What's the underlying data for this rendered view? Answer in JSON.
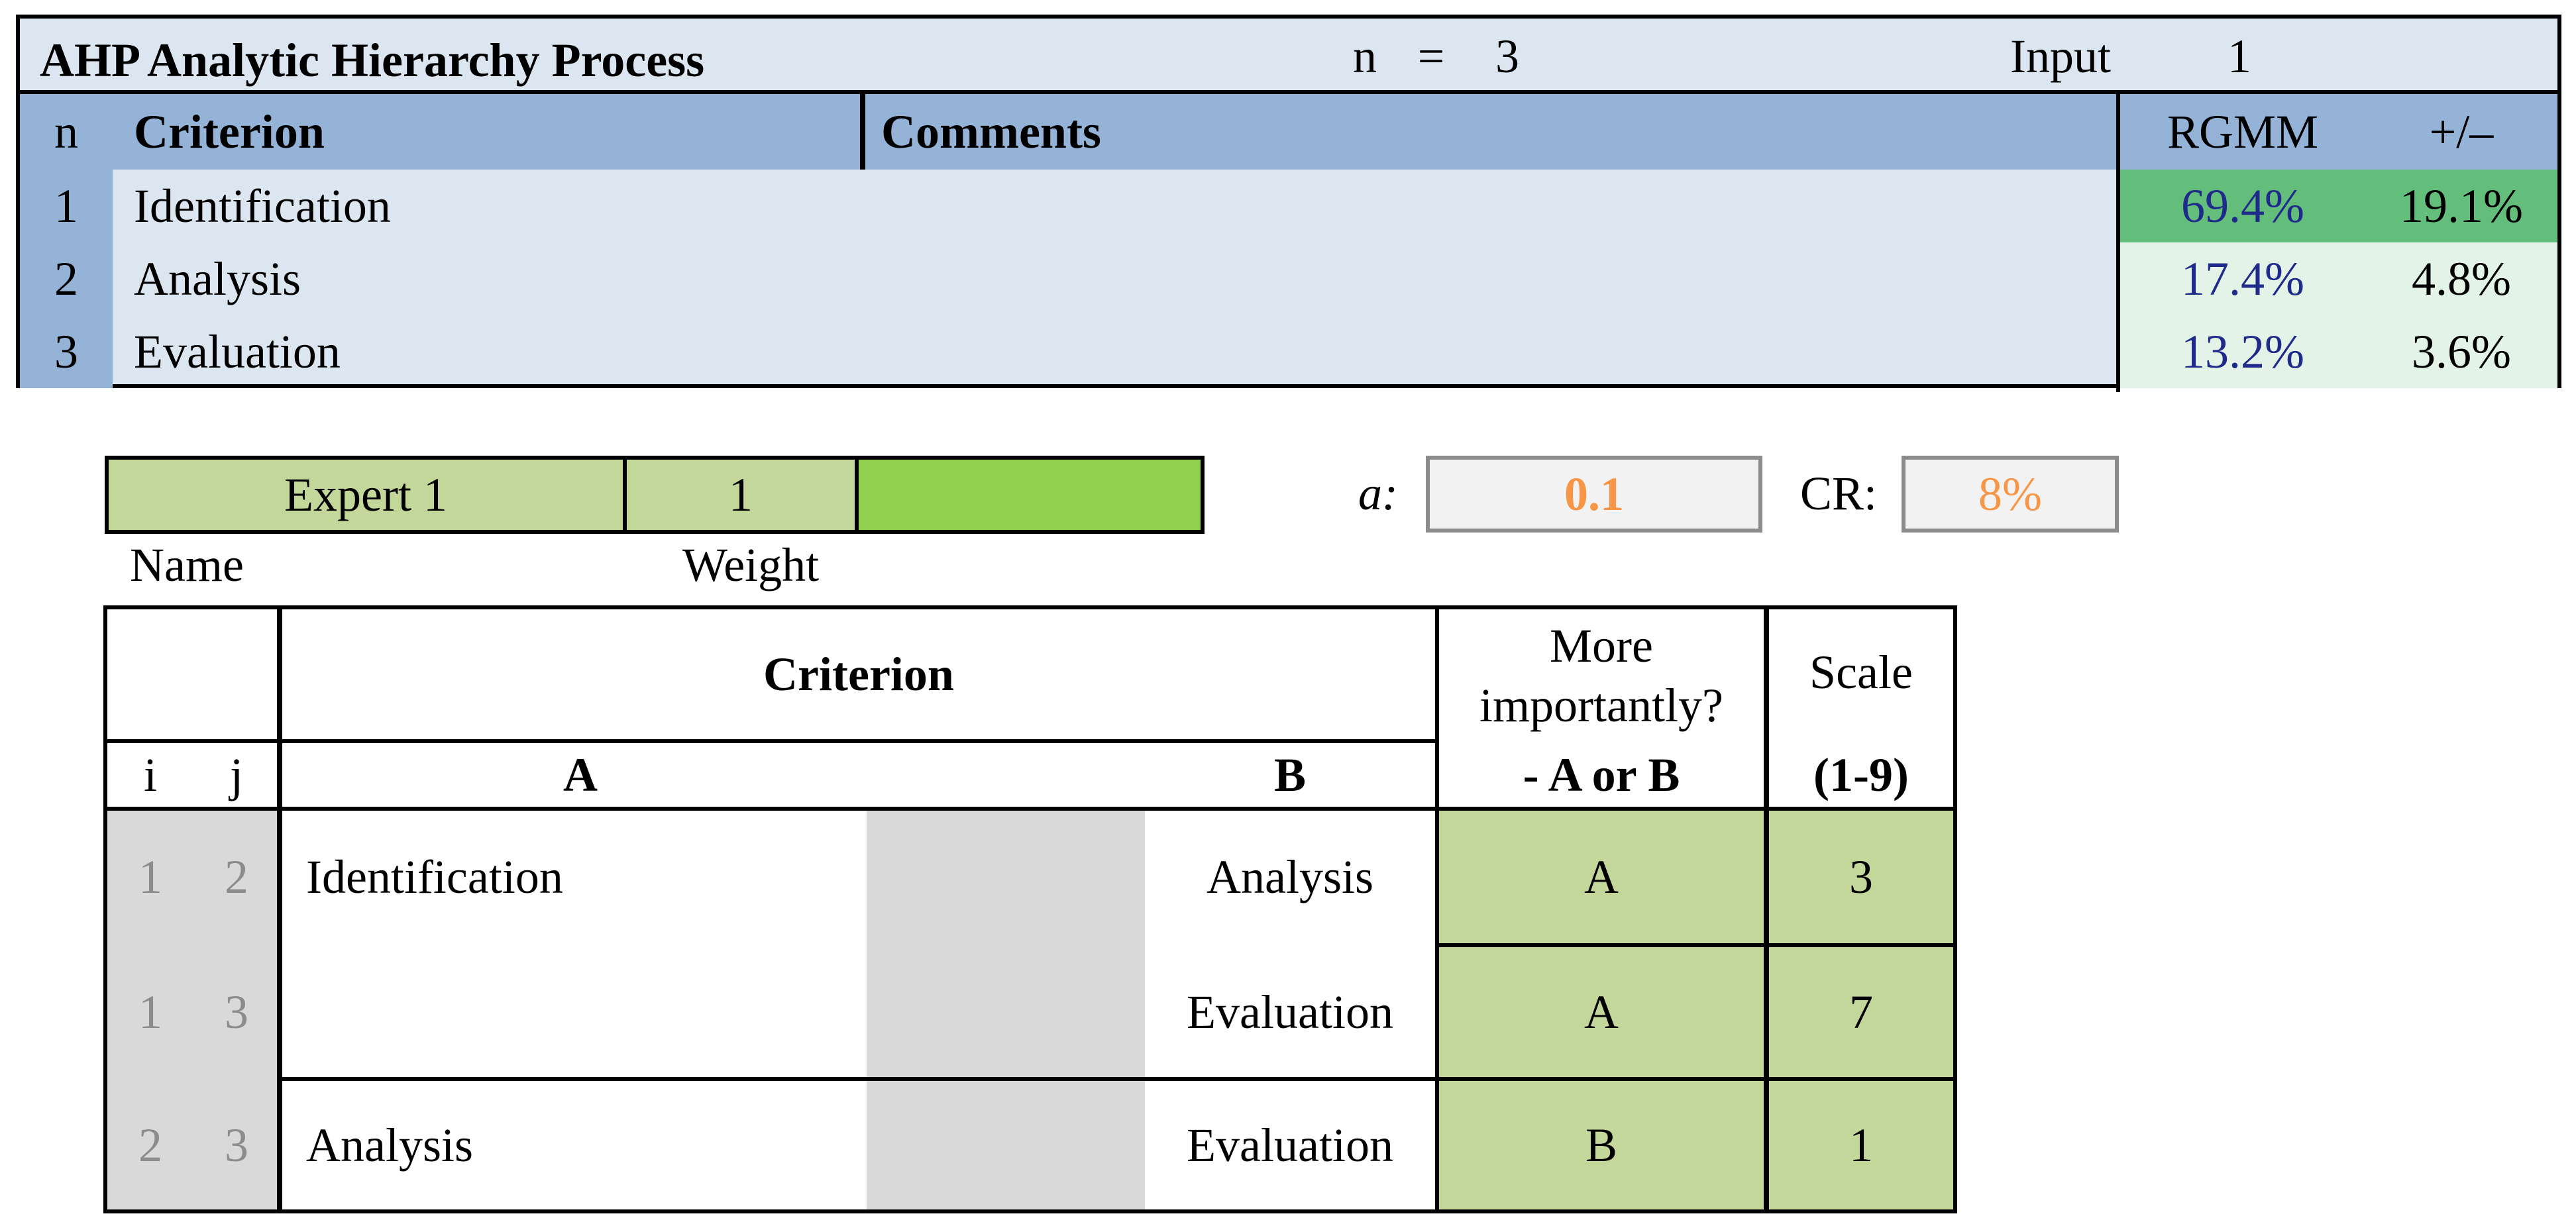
{
  "summary": {
    "title": "AHP Analytic Hierarchy Process",
    "n_label": "n",
    "n_equals": "=",
    "n_value": "3",
    "input_label": "Input",
    "input_value": "1",
    "headers": {
      "n": "n",
      "criterion": "Criterion",
      "comments": "Comments",
      "rgmm": "RGMM",
      "plusminus": "+/–"
    },
    "rows": [
      {
        "n": "1",
        "criterion": "Identification",
        "comment": "",
        "rgmm": "69.4%",
        "plusminus": "19.1%"
      },
      {
        "n": "2",
        "criterion": "Analysis",
        "comment": "",
        "rgmm": "17.4%",
        "plusminus": "4.8%"
      },
      {
        "n": "3",
        "criterion": "Evaluation",
        "comment": "",
        "rgmm": "13.2%",
        "plusminus": "3.6%"
      }
    ]
  },
  "expert": {
    "name_value": "Expert 1",
    "weight_value": "1",
    "name_label": "Name",
    "weight_label": "Weight",
    "alpha_label": "a:",
    "alpha_value": "0.1",
    "cr_label": "CR:",
    "cr_value": "8%"
  },
  "comparison": {
    "header_criterion": "Criterion",
    "header_more_line1": "More",
    "header_more_line2": "importantly?",
    "header_scale": "Scale",
    "header_i": "i",
    "header_j": "j",
    "header_a": "A",
    "header_b": "B",
    "header_aorb": "- A or B",
    "header_range": "(1-9)",
    "rows": [
      {
        "i": "1",
        "j": "2",
        "a": "Identification",
        "b": "Analysis",
        "choice": "A",
        "scale": "3"
      },
      {
        "i": "1",
        "j": "3",
        "a": "",
        "b": "Evaluation",
        "choice": "A",
        "scale": "7"
      },
      {
        "i": "2",
        "j": "3",
        "a": "Analysis",
        "b": "Evaluation",
        "choice": "B",
        "scale": "1"
      }
    ]
  },
  "colors": {
    "summary_light": "#dce6f1",
    "summary_header": "#95b3d7",
    "rgmm_top": "#63be7b",
    "rgmm_other": "#e3f3e7",
    "expert_green": "#c4d79b",
    "expert_bright": "#92d050",
    "param_orange": "#f79646",
    "gray_column": "#d9d9d9"
  }
}
